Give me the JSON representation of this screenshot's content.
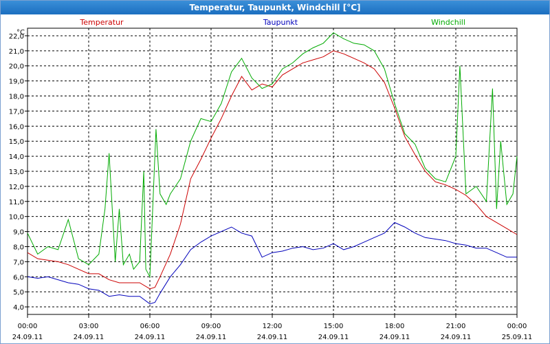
{
  "window": {
    "title": "Temperatur, Taupunkt, Windchill [°C]"
  },
  "chart_data": {
    "type": "line",
    "title": "Temperatur, Taupunkt, Windchill [°C]",
    "ylabel": "°C",
    "ylim": [
      3.5,
      22.5
    ],
    "yticks": [
      "4,0",
      "5,0",
      "6,0",
      "7,0",
      "8,0",
      "9,0",
      "10,0",
      "11,0",
      "12,0",
      "13,0",
      "14,0",
      "15,0",
      "16,0",
      "17,0",
      "18,0",
      "19,0",
      "20,0",
      "21,0",
      "22,0"
    ],
    "xlim": [
      0,
      24
    ],
    "xticks": [
      {
        "time": "00:00",
        "date": "24.09.11"
      },
      {
        "time": "03:00",
        "date": "24.09.11"
      },
      {
        "time": "06:00",
        "date": "24.09.11"
      },
      {
        "time": "09:00",
        "date": "24.09.11"
      },
      {
        "time": "12:00",
        "date": "24.09.11"
      },
      {
        "time": "15:00",
        "date": "24.09.11"
      },
      {
        "time": "18:00",
        "date": "24.09.11"
      },
      {
        "time": "21:00",
        "date": "24.09.11"
      },
      {
        "time": "00:00",
        "date": "25.09.11"
      }
    ],
    "grid": true,
    "colors": {
      "Temperatur": "#cc0000",
      "Taupunkt": "#0000bb",
      "Windchill": "#00aa00"
    },
    "series": [
      {
        "name": "Temperatur",
        "x": [
          0,
          0.5,
          1,
          1.5,
          2,
          2.5,
          3,
          3.5,
          4,
          4.5,
          5,
          5.5,
          6,
          6.25,
          6.5,
          7,
          7.5,
          8,
          8.5,
          9,
          9.5,
          10,
          10.5,
          11,
          11.5,
          12,
          12.5,
          13,
          13.5,
          14,
          14.5,
          15,
          15.5,
          16,
          16.5,
          17,
          17.5,
          18,
          18.5,
          19,
          19.5,
          20,
          20.5,
          21,
          21.5,
          22,
          22.5,
          23,
          23.5,
          24
        ],
        "values": [
          7.6,
          7.2,
          7.1,
          7.0,
          6.8,
          6.5,
          6.2,
          6.2,
          5.8,
          5.6,
          5.6,
          5.6,
          5.2,
          5.3,
          6.0,
          7.5,
          9.5,
          12.5,
          13.8,
          15.2,
          16.5,
          18.0,
          19.3,
          18.4,
          18.8,
          18.6,
          19.4,
          19.8,
          20.2,
          20.4,
          20.6,
          21.0,
          20.8,
          20.5,
          20.2,
          19.8,
          18.9,
          17.2,
          15.3,
          14.1,
          13.0,
          12.3,
          12.1,
          11.8,
          11.4,
          10.8,
          10.0,
          9.6,
          9.2,
          8.8
        ]
      },
      {
        "name": "Taupunkt",
        "x": [
          0,
          0.5,
          1,
          1.5,
          2,
          2.5,
          3,
          3.5,
          4,
          4.5,
          5,
          5.5,
          6,
          6.25,
          6.5,
          7,
          7.5,
          8,
          8.5,
          9,
          9.5,
          10,
          10.5,
          11,
          11.5,
          12,
          12.5,
          13,
          13.5,
          14,
          14.5,
          15,
          15.5,
          16,
          16.5,
          17,
          17.5,
          18,
          18.5,
          19,
          19.5,
          20,
          20.5,
          21,
          21.5,
          22,
          22.5,
          23,
          23.5,
          24
        ],
        "values": [
          6.0,
          5.9,
          6.0,
          5.8,
          5.6,
          5.5,
          5.2,
          5.1,
          4.7,
          4.8,
          4.7,
          4.7,
          4.2,
          4.3,
          4.9,
          6.0,
          6.8,
          7.8,
          8.3,
          8.7,
          9.0,
          9.3,
          8.9,
          8.7,
          7.3,
          7.6,
          7.7,
          7.9,
          8.0,
          7.8,
          7.9,
          8.2,
          7.8,
          8.0,
          8.3,
          8.6,
          8.9,
          9.6,
          9.3,
          8.9,
          8.6,
          8.5,
          8.4,
          8.2,
          8.1,
          7.9,
          7.9,
          7.6,
          7.3,
          7.3
        ]
      },
      {
        "name": "Windchill",
        "x": [
          0,
          0.5,
          1,
          1.5,
          2,
          2.5,
          3,
          3.5,
          3.8,
          4,
          4.3,
          4.5,
          4.7,
          5,
          5.2,
          5.5,
          5.7,
          5.8,
          6,
          6.3,
          6.5,
          6.8,
          7,
          7.5,
          8,
          8.5,
          9,
          9.5,
          10,
          10.5,
          11,
          11.5,
          12,
          12.5,
          13,
          13.5,
          14,
          14.5,
          15,
          15.5,
          16,
          16.5,
          17,
          17.5,
          18,
          18.5,
          19,
          19.5,
          20,
          20.5,
          21,
          21.2,
          21.5,
          22,
          22.5,
          22.8,
          23,
          23.2,
          23.5,
          23.8,
          24
        ],
        "values": [
          8.9,
          7.5,
          8.0,
          7.8,
          9.8,
          7.2,
          6.8,
          7.5,
          10.5,
          14.2,
          7.0,
          10.5,
          6.8,
          7.5,
          6.5,
          7.0,
          13.0,
          6.5,
          6.0,
          15.8,
          11.5,
          10.8,
          11.5,
          12.5,
          15.0,
          16.5,
          16.3,
          17.5,
          19.6,
          20.5,
          19.2,
          18.5,
          18.8,
          19.8,
          20.2,
          20.8,
          21.2,
          21.5,
          22.2,
          21.8,
          21.5,
          21.4,
          21.0,
          19.8,
          17.5,
          15.5,
          14.8,
          13.2,
          12.5,
          12.3,
          14.0,
          20.0,
          11.5,
          12.0,
          11.0,
          18.5,
          10.5,
          15.0,
          10.8,
          11.5,
          14.0
        ]
      }
    ]
  }
}
